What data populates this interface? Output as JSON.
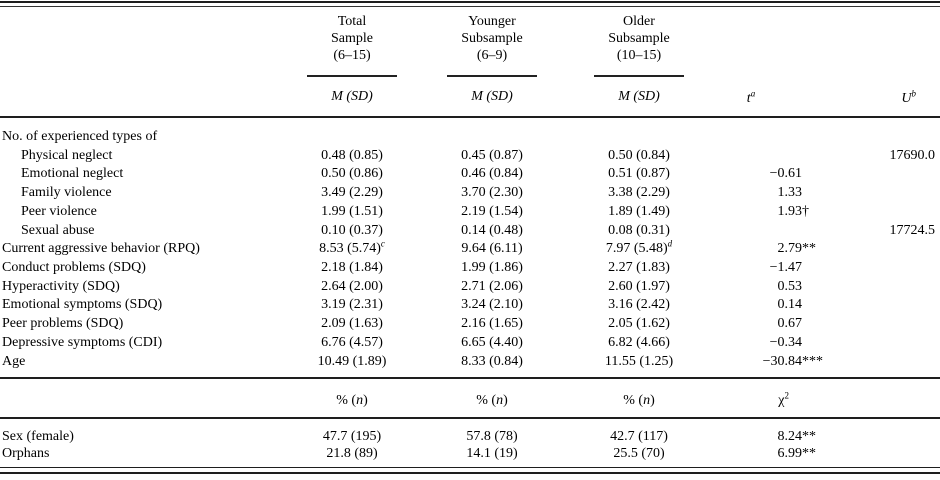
{
  "header": {
    "groups": [
      {
        "line1": "Total",
        "line2": "Sample",
        "line3": "(6–15)",
        "sub": "M (SD)"
      },
      {
        "line1": "Younger",
        "line2": "Subsample",
        "line3": "(6–9)",
        "sub": "M (SD)"
      },
      {
        "line1": "Older",
        "line2": "Subsample",
        "line3": "(10–15)",
        "sub": "M (SD)"
      }
    ],
    "t": {
      "base": "t",
      "sup": "a"
    },
    "u": {
      "base": "U",
      "sup": "b"
    }
  },
  "mean_rows": [
    {
      "label": "No. of experienced types of",
      "indent": 0
    },
    {
      "label": "Physical neglect",
      "indent": 1,
      "c1": "0.48 (0.85)",
      "c2": "0.45 (0.87)",
      "c3": "0.50 (0.84)",
      "u": "17690.0"
    },
    {
      "label": "Emotional neglect",
      "indent": 1,
      "c1": "0.50 (0.86)",
      "c2": "0.46 (0.84)",
      "c3": "0.51 (0.87)",
      "t": "−0.61"
    },
    {
      "label": "Family violence",
      "indent": 1,
      "c1": "3.49 (2.29)",
      "c2": "3.70 (2.30)",
      "c3": "3.38 (2.29)",
      "t": "1.33"
    },
    {
      "label": "Peer violence",
      "indent": 1,
      "c1": "1.99 (1.51)",
      "c2": "2.19 (1.54)",
      "c3": "1.89 (1.49)",
      "t": "1.93",
      "t_suffix": "†"
    },
    {
      "label": "Sexual abuse",
      "indent": 1,
      "c1": "0.10 (0.37)",
      "c2": "0.14 (0.48)",
      "c3": "0.08 (0.31)",
      "u": "17724.5"
    },
    {
      "label": "Current aggressive behavior (RPQ)",
      "indent": 0,
      "c1": "8.53 (5.74)",
      "c1_sup": "c",
      "c2": "9.64 (6.11)",
      "c3": "7.97 (5.48)",
      "c3_sup": "d",
      "t": "2.79",
      "t_suffix": "**"
    },
    {
      "label": "Conduct problems (SDQ)",
      "indent": 0,
      "c1": "2.18 (1.84)",
      "c2": "1.99 (1.86)",
      "c3": "2.27 (1.83)",
      "t": "−1.47"
    },
    {
      "label": "Hyperactivity (SDQ)",
      "indent": 0,
      "c1": "2.64 (2.00)",
      "c2": "2.71 (2.06)",
      "c3": "2.60 (1.97)",
      "t": "0.53"
    },
    {
      "label": "Emotional symptoms (SDQ)",
      "indent": 0,
      "c1": "3.19 (2.31)",
      "c2": "3.24 (2.10)",
      "c3": "3.16 (2.42)",
      "t": "0.14"
    },
    {
      "label": "Peer problems (SDQ)",
      "indent": 0,
      "c1": "2.09 (1.63)",
      "c2": "2.16 (1.65)",
      "c3": "2.05 (1.62)",
      "t": "0.67"
    },
    {
      "label": "Depressive symptoms (CDI)",
      "indent": 0,
      "c1": "6.76 (4.57)",
      "c2": "6.65 (4.40)",
      "c3": "6.82 (4.66)",
      "t": "−0.34"
    },
    {
      "label": "Age",
      "indent": 0,
      "c1": "10.49 (1.89)",
      "c2": "8.33 (0.84)",
      "c3": "11.55 (1.25)",
      "t": "−30.84",
      "t_suffix": "***"
    }
  ],
  "percent_header": {
    "pre": "% (",
    "n": "n",
    "post": ")",
    "chi": "χ",
    "chi_sup": "2"
  },
  "percent_rows": [
    {
      "label": "Sex (female)",
      "indent": 0,
      "c1": "47.7 (195)",
      "c2": "57.8 (78)",
      "c3": "42.7 (117)",
      "t": "8.24",
      "t_suffix": "**"
    },
    {
      "label": "Orphans",
      "indent": 0,
      "c1": "21.8 (89)",
      "c2": "14.1 (19)",
      "c3": "25.5 (70)",
      "t": "6.99",
      "t_suffix": "**"
    }
  ]
}
